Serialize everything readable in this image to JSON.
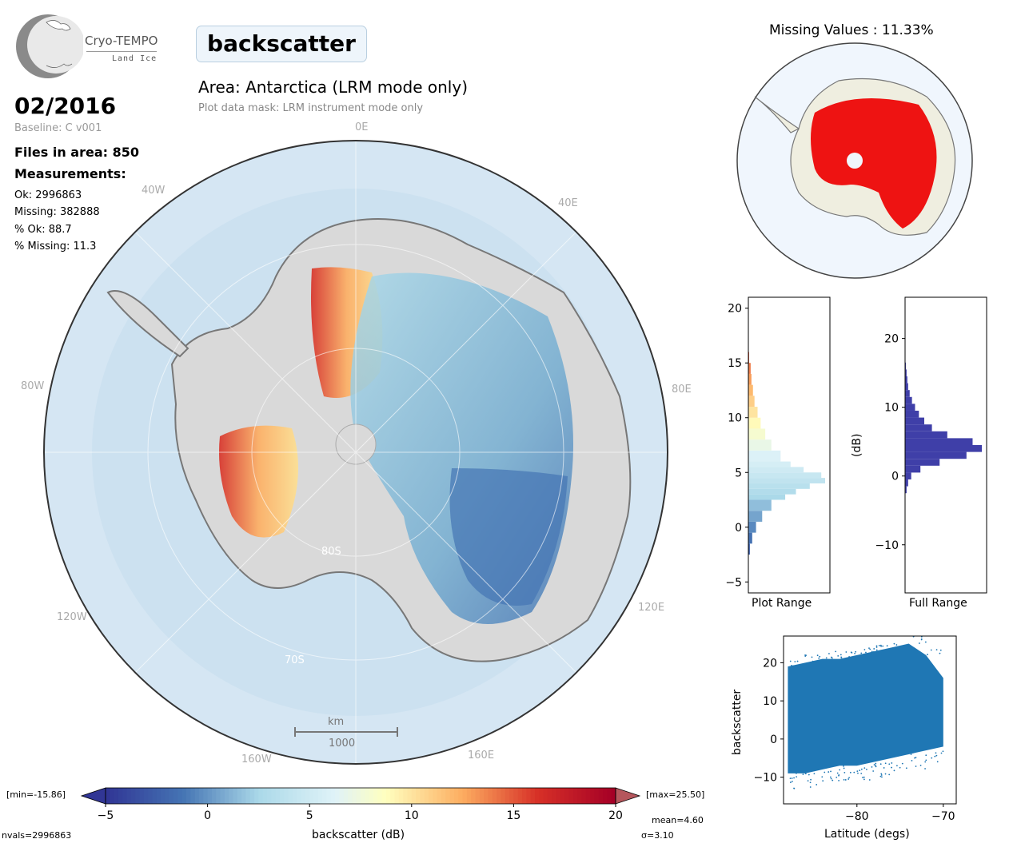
{
  "logo": {
    "name": "Cryo-TEMPO",
    "subtitle": "Land Ice"
  },
  "header": {
    "parameter": "backscatter",
    "area_title": "Area: Antarctica (LRM mode only)",
    "mask_note": "Plot data mask: LRM instrument mode only"
  },
  "info": {
    "date": "02/2016",
    "baseline": "Baseline: C v001",
    "files": "Files in area: 850",
    "measurements_heading": "Measurements:",
    "ok": "Ok: 2996863",
    "missing": "Missing: 382888",
    "pct_ok": "% Ok: 88.7",
    "pct_missing": "% Missing: 11.3"
  },
  "map": {
    "lon_labels": [
      "0E",
      "40E",
      "80E",
      "120E",
      "160E",
      "160W",
      "120W",
      "80W",
      "40W"
    ],
    "lat_labels": [
      "80S",
      "70S"
    ],
    "scalebar_unit": "km",
    "scalebar_value": "1000",
    "ocean_color": "#d5e6f3",
    "ice_color": "#d9d9d9"
  },
  "missing_map": {
    "title": "Missing Values : 11.33%",
    "land_color": "#efeee0",
    "missing_color": "#ee0000"
  },
  "colorbar": {
    "label": "backscatter (dB)",
    "min_label": "[min=-15.86]",
    "max_label": "[max=25.50]",
    "ticks": [
      "−5",
      "0",
      "5",
      "10",
      "15",
      "20"
    ],
    "range": [
      -5,
      20
    ],
    "colormap": "RdYlBu_r"
  },
  "stats": {
    "nvals": "nvals=2996863",
    "mean": "mean=4.60",
    "sigma": "σ=3.10"
  },
  "chart_data": [
    {
      "type": "bar",
      "orientation": "horizontal",
      "title": "",
      "xlabel": "Plot Range",
      "ylabel": "",
      "ylim": [
        -6,
        21
      ],
      "yticks": [
        "−5",
        "0",
        "5",
        "10",
        "15",
        "20"
      ],
      "bins": [
        -2.5,
        -1.5,
        -0.5,
        0.5,
        1.5,
        2.5,
        3,
        3.5,
        4,
        4.5,
        5,
        5.5,
        6,
        7,
        8,
        9,
        10,
        11,
        12,
        13,
        14,
        15
      ],
      "values": [
        0.02,
        0.05,
        0.1,
        0.18,
        0.3,
        0.48,
        0.62,
        0.8,
        1.0,
        0.95,
        0.72,
        0.55,
        0.42,
        0.3,
        0.22,
        0.16,
        0.12,
        0.08,
        0.06,
        0.04,
        0.03,
        0.01
      ]
    },
    {
      "type": "bar",
      "orientation": "horizontal",
      "title": "",
      "xlabel": "Full Range",
      "ylabel": "(dB)",
      "ylim": [
        -17,
        26
      ],
      "yticks": [
        "−10",
        "0",
        "10",
        "20"
      ],
      "color": "#3f3fa8",
      "bins": [
        -2.5,
        -1.5,
        -0.5,
        0.5,
        1.5,
        2.5,
        3.5,
        4.5,
        5.5,
        6.5,
        7.5,
        8.5,
        9.5,
        10.5,
        11.5,
        12.5,
        13.5,
        14.5,
        15.5
      ],
      "values": [
        0.02,
        0.04,
        0.08,
        0.2,
        0.45,
        0.8,
        1.0,
        0.88,
        0.55,
        0.35,
        0.25,
        0.18,
        0.13,
        0.09,
        0.06,
        0.04,
        0.03,
        0.02,
        0.01
      ]
    },
    {
      "type": "scatter",
      "title": "",
      "xlabel": "Latitude (degs)",
      "ylabel": "backscatter",
      "xlim": [
        -88.5,
        -68.5
      ],
      "ylim": [
        -17,
        27
      ],
      "xticks": [
        "−80",
        "−70"
      ],
      "yticks": [
        "−10",
        "0",
        "10",
        "20"
      ],
      "color": "#1f77b4",
      "x_range": [
        -88,
        -70
      ],
      "y_band_low": [
        -9,
        -9,
        -8,
        -7,
        -7,
        -6,
        -5,
        -4,
        -3,
        -2
      ],
      "y_band_high": [
        19,
        20,
        21,
        21,
        22,
        23,
        24,
        25,
        22,
        16
      ]
    }
  ]
}
